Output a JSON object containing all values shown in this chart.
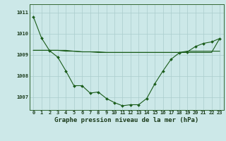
{
  "title": "Graphe pression niveau de la mer (hPa)",
  "bg_color": "#cce8e8",
  "grid_color": "#aacccc",
  "line_color": "#1a5c1a",
  "x_labels": [
    "0",
    "1",
    "2",
    "3",
    "4",
    "5",
    "6",
    "7",
    "8",
    "9",
    "10",
    "11",
    "12",
    "13",
    "14",
    "15",
    "16",
    "17",
    "18",
    "19",
    "20",
    "21",
    "22",
    "23"
  ],
  "ylim": [
    1006.4,
    1011.4
  ],
  "yticks": [
    1007,
    1008,
    1009,
    1010,
    1011
  ],
  "series1": [
    1010.8,
    1009.8,
    1009.2,
    1008.9,
    1008.25,
    1007.55,
    1007.55,
    1007.2,
    1007.25,
    1006.95,
    1006.75,
    1006.6,
    1006.65,
    1006.65,
    1006.95,
    1007.65,
    1008.25,
    1008.8,
    1009.1,
    1009.15,
    1009.4,
    1009.55,
    1009.62,
    1009.78
  ],
  "series2": [
    1009.22,
    1009.22,
    1009.22,
    1009.22,
    1009.18,
    1009.18,
    1009.15,
    1009.15,
    1009.12,
    1009.12,
    1009.12,
    1009.12,
    1009.12,
    1009.12,
    1009.12,
    1009.12,
    1009.12,
    1009.12,
    1009.12,
    1009.12,
    1009.12,
    1009.12,
    1009.12,
    1009.78
  ],
  "series3": [
    1009.22,
    1009.22,
    1009.22,
    1009.22,
    1009.22,
    1009.18,
    1009.15,
    1009.15,
    1009.15,
    1009.12,
    1009.12,
    1009.12,
    1009.12,
    1009.12,
    1009.12,
    1009.12,
    1009.12,
    1009.12,
    1009.12,
    1009.18,
    1009.18,
    1009.18,
    1009.18,
    1009.18
  ],
  "title_fontsize": 6.5,
  "tick_fontsize": 5.0,
  "fig_width": 3.2,
  "fig_height": 2.0,
  "dpi": 100
}
